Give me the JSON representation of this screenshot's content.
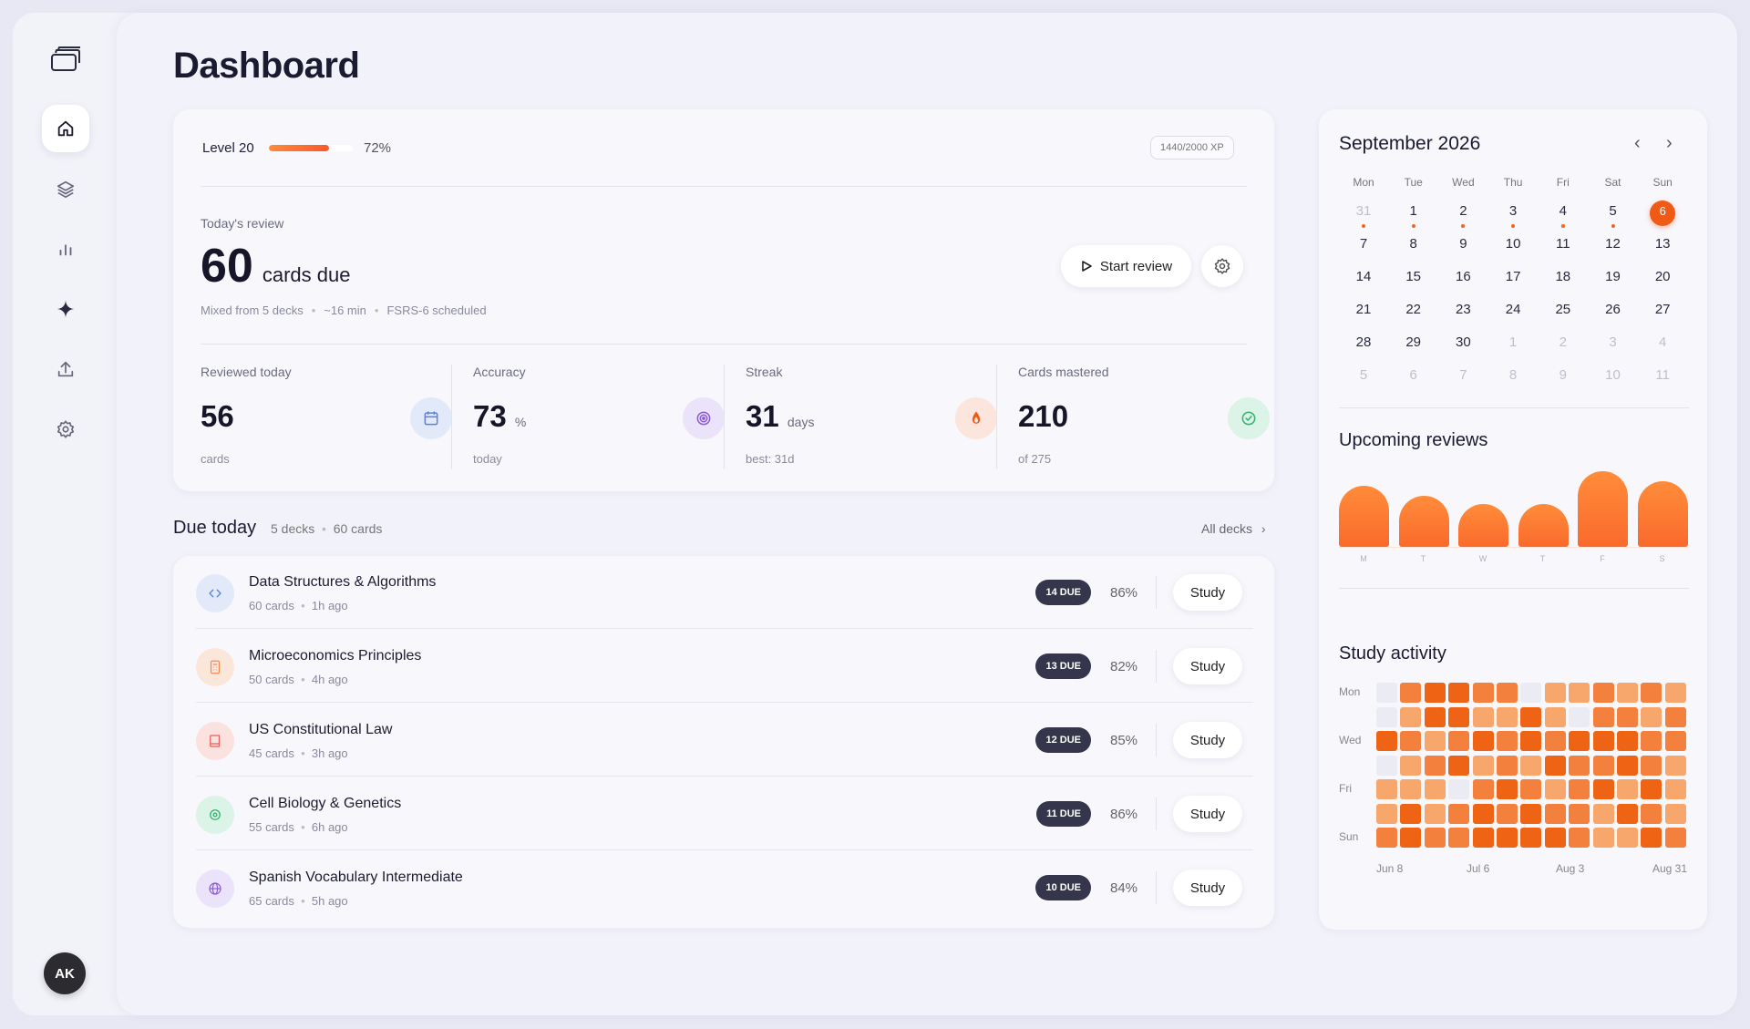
{
  "app": {
    "page_title": "Dashboard",
    "avatar_initials": "AK"
  },
  "nav": [
    "home-icon",
    "layers-icon",
    "bar-chart-icon",
    "sparkle-icon",
    "upload-icon",
    "gear-icon"
  ],
  "level": {
    "label": "Level 20",
    "progress_pct": 72,
    "pct_label": "72%",
    "xp_label": "1440/2000 XP"
  },
  "review": {
    "label": "Today's review",
    "count": "60",
    "unit": "cards due",
    "meta": [
      "Mixed from 5 decks",
      "~16 min",
      "FSRS-6 scheduled"
    ],
    "start_label": "Start review"
  },
  "stats": [
    {
      "label": "Reviewed today",
      "value": "56",
      "unit": "",
      "sub": "cards",
      "icon": "calendar-icon",
      "bg": "#e2eafa",
      "fg": "#5b82d8"
    },
    {
      "label": "Accuracy",
      "value": "73",
      "unit": "%",
      "sub": "today",
      "icon": "target-icon",
      "bg": "#ebe3fa",
      "fg": "#8b5ad8"
    },
    {
      "label": "Streak",
      "value": "31",
      "unit": "days",
      "sub": "best: 31d",
      "icon": "flame-icon",
      "bg": "#fbe5dc",
      "fg": "#ef5a17"
    },
    {
      "label": "Cards mastered",
      "value": "210",
      "unit": "",
      "sub": "of 275",
      "icon": "check-circle-icon",
      "bg": "#dcf3e7",
      "fg": "#2fb36e"
    }
  ],
  "due_today": {
    "title": "Due today",
    "meta": [
      "5 decks",
      "60 cards"
    ],
    "all_label": "All decks",
    "study_label": "Study",
    "decks": [
      {
        "name": "Data Structures & Algorithms",
        "cards": "60 cards",
        "ago": "1h ago",
        "due": "14 DUE",
        "retention": "86%",
        "icon": "code-icon",
        "bg": "#e2eafa",
        "fg": "#5b82d8"
      },
      {
        "name": "Microeconomics Principles",
        "cards": "50 cards",
        "ago": "4h ago",
        "due": "13 DUE",
        "retention": "82%",
        "icon": "calculator-icon",
        "bg": "#fbe6da",
        "fg": "#f08a50"
      },
      {
        "name": "US Constitutional Law",
        "cards": "45 cards",
        "ago": "3h ago",
        "due": "12 DUE",
        "retention": "85%",
        "icon": "book-icon",
        "bg": "#fbe2df",
        "fg": "#e8605a"
      },
      {
        "name": "Cell Biology & Genetics",
        "cards": "55 cards",
        "ago": "6h ago",
        "due": "11 DUE",
        "retention": "86%",
        "icon": "cell-icon",
        "bg": "#dcf3e7",
        "fg": "#2fb36e"
      },
      {
        "name": "Spanish Vocabulary Intermediate",
        "cards": "65 cards",
        "ago": "5h ago",
        "due": "10 DUE",
        "retention": "84%",
        "icon": "globe-icon",
        "bg": "#ebe3fa",
        "fg": "#8b5ad8"
      }
    ]
  },
  "calendar": {
    "title": "September 2026",
    "weekdays": [
      "Mon",
      "Tue",
      "Wed",
      "Thu",
      "Fri",
      "Sat",
      "Sun"
    ],
    "weeks": [
      [
        "31",
        "1",
        "2",
        "3",
        "4",
        "5",
        "6"
      ],
      [
        "7",
        "8",
        "9",
        "10",
        "11",
        "12",
        "13"
      ],
      [
        "14",
        "15",
        "16",
        "17",
        "18",
        "19",
        "20"
      ],
      [
        "21",
        "22",
        "23",
        "24",
        "25",
        "26",
        "27"
      ],
      [
        "28",
        "29",
        "30",
        "1",
        "2",
        "3",
        "4"
      ],
      [
        "5",
        "6",
        "7",
        "8",
        "9",
        "10",
        "11"
      ]
    ],
    "today": "6",
    "dotted_days": [
      "31",
      "1",
      "2",
      "3",
      "4",
      "5"
    ]
  },
  "upcoming": {
    "title": "Upcoming reviews",
    "labels": [
      "M",
      "T",
      "W",
      "T",
      "F",
      "S"
    ],
    "relative_load": [
      0.75,
      0.62,
      0.52,
      0.52,
      0.92,
      0.8
    ]
  },
  "activity": {
    "title": "Study activity",
    "day_labels": [
      "Mon",
      "Wed",
      "Fri",
      "Sun"
    ],
    "month_labels": [
      "Jun 8",
      "Jul 6",
      "Aug 3",
      "Aug 31"
    ],
    "levels": [
      [
        0,
        3,
        4,
        4,
        3,
        3,
        0,
        2,
        2,
        3,
        2,
        3,
        2
      ],
      [
        0,
        2,
        4,
        4,
        2,
        2,
        4,
        2,
        0,
        3,
        3,
        2,
        3
      ],
      [
        4,
        3,
        2,
        3,
        4,
        3,
        4,
        3,
        4,
        4,
        4,
        3,
        3
      ],
      [
        0,
        2,
        3,
        4,
        2,
        3,
        2,
        4,
        3,
        3,
        4,
        3,
        2
      ],
      [
        2,
        2,
        2,
        0,
        3,
        4,
        3,
        2,
        3,
        4,
        2,
        4,
        2
      ],
      [
        2,
        4,
        2,
        3,
        4,
        3,
        4,
        3,
        3,
        2,
        4,
        3,
        2
      ],
      [
        3,
        4,
        3,
        3,
        4,
        4,
        4,
        4,
        3,
        2,
        2,
        4,
        3
      ]
    ]
  }
}
